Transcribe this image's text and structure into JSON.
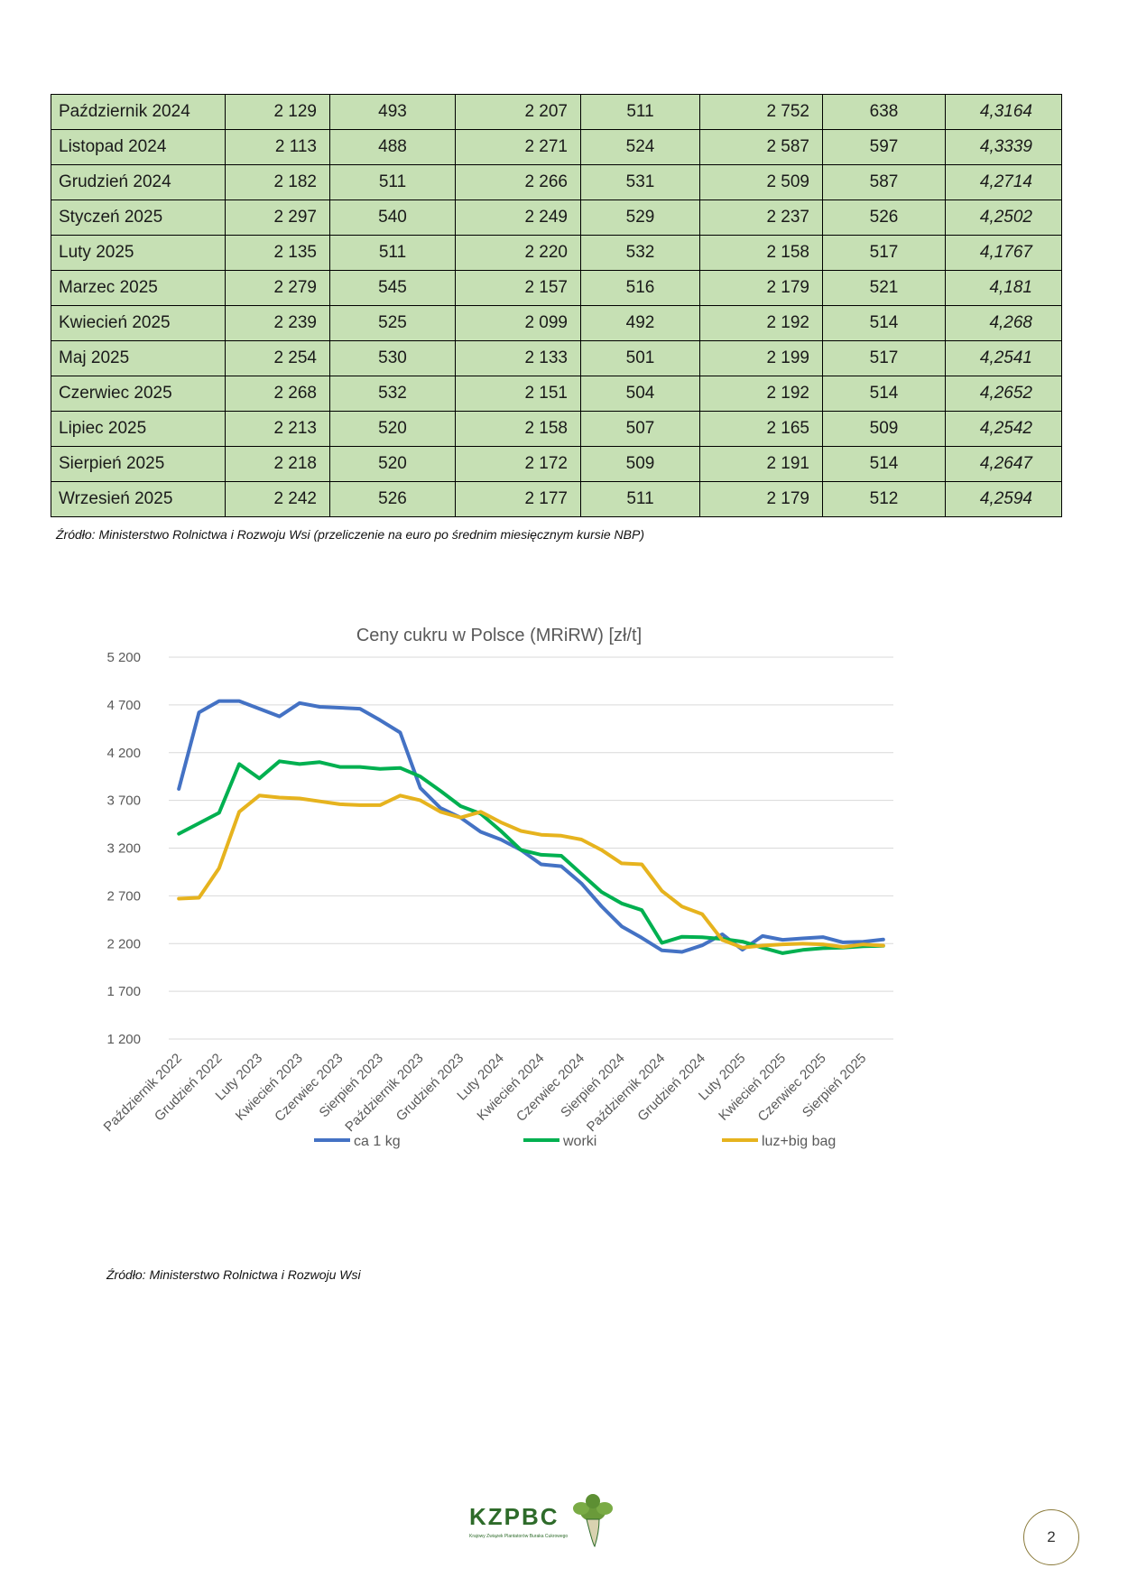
{
  "table": {
    "rows": [
      [
        "Październik 2024",
        "2 129",
        "493",
        "2 207",
        "511",
        "2 752",
        "638",
        "4,3164"
      ],
      [
        "Listopad 2024",
        "2 113",
        "488",
        "2 271",
        "524",
        "2 587",
        "597",
        "4,3339"
      ],
      [
        "Grudzień 2024",
        "2 182",
        "511",
        "2 266",
        "531",
        "2 509",
        "587",
        "4,2714"
      ],
      [
        "Styczeń 2025",
        "2 297",
        "540",
        "2 249",
        "529",
        "2 237",
        "526",
        "4,2502"
      ],
      [
        "Luty 2025",
        "2 135",
        "511",
        "2 220",
        "532",
        "2 158",
        "517",
        "4,1767"
      ],
      [
        "Marzec 2025",
        "2 279",
        "545",
        "2 157",
        "516",
        "2 179",
        "521",
        "4,181"
      ],
      [
        "Kwiecień 2025",
        "2 239",
        "525",
        "2 099",
        "492",
        "2 192",
        "514",
        "4,268"
      ],
      [
        "Maj 2025",
        "2 254",
        "530",
        "2 133",
        "501",
        "2 199",
        "517",
        "4,2541"
      ],
      [
        "Czerwiec 2025",
        "2 268",
        "532",
        "2 151",
        "504",
        "2 192",
        "514",
        "4,2652"
      ],
      [
        "Lipiec 2025",
        "2 213",
        "520",
        "2 158",
        "507",
        "2 165",
        "509",
        "4,2542"
      ],
      [
        "Sierpień 2025",
        "2 218",
        "520",
        "2 172",
        "509",
        "2 191",
        "514",
        "4,2647"
      ],
      [
        "Wrzesień 2025",
        "2 242",
        "526",
        "2 177",
        "511",
        "2 179",
        "512",
        "4,2594"
      ]
    ],
    "background_color": "#c6e0b4"
  },
  "table_source": "Źródło: Ministerstwo Rolnictwa i Rozwoju Wsi (przeliczenie na euro po średnim miesięcznym kursie NBP)",
  "chart_source": "Źródło: Ministerstwo Rolnictwa i Rozwoju Wsi",
  "chart_data": {
    "type": "line",
    "title": "Ceny cukru w Polsce (MRiRW) [zł/t]",
    "ylim": [
      1200,
      5200
    ],
    "yticks": [
      1200,
      1700,
      2200,
      2700,
      3200,
      3700,
      4200,
      4700,
      5200
    ],
    "ytick_labels": [
      "1 200",
      "1 700",
      "2 200",
      "2 700",
      "3 200",
      "3 700",
      "4 200",
      "4 700",
      "5 200"
    ],
    "grid": true,
    "legend_position": "bottom",
    "categories": [
      "Październik 2022",
      "Listopad 2022",
      "Grudzień 2022",
      "Styczeń 2023",
      "Luty 2023",
      "Marzec 2023",
      "Kwiecień 2023",
      "Maj 2023",
      "Czerwiec 2023",
      "Lipiec 2023",
      "Sierpień 2023",
      "Wrzesień 2023",
      "Październik 2023",
      "Listopad 2023",
      "Grudzień 2023",
      "Styczeń 2024",
      "Luty 2024",
      "Marzec 2024",
      "Kwiecień 2024",
      "Maj 2024",
      "Czerwiec 2024",
      "Lipiec 2024",
      "Sierpień 2024",
      "Wrzesień 2024",
      "Październik 2024",
      "Listopad 2024",
      "Grudzień 2024",
      "Styczeń 2025",
      "Luty 2025",
      "Marzec 2025",
      "Kwiecień 2025",
      "Maj 2025",
      "Czerwiec 2025",
      "Lipiec 2025",
      "Sierpień 2025",
      "Wrzesień 2025"
    ],
    "xtick_labels": [
      "Październik 2022",
      "",
      "Grudzień 2022",
      "",
      "Luty 2023",
      "",
      "Kwiecień 2023",
      "",
      "Czerwiec 2023",
      "",
      "Sierpień 2023",
      "",
      "Październik 2023",
      "",
      "Grudzień 2023",
      "",
      "Luty 2024",
      "",
      "Kwiecień 2024",
      "",
      "Czerwiec 2024",
      "",
      "Sierpień 2024",
      "",
      "Październik 2024",
      "",
      "Grudzień 2024",
      "",
      "Luty 2025",
      "",
      "Kwiecień 2025",
      "",
      "Czerwiec 2025",
      "",
      "Sierpień 2025",
      ""
    ],
    "series": [
      {
        "name": "ca 1 kg",
        "color": "#4472c4",
        "values": [
          3820,
          4620,
          4740,
          4740,
          4660,
          4580,
          4720,
          4680,
          4670,
          4660,
          4540,
          4410,
          3830,
          3620,
          3520,
          3370,
          3290,
          3180,
          3030,
          3010,
          2830,
          2590,
          2380,
          2260,
          2129,
          2113,
          2182,
          2297,
          2135,
          2279,
          2239,
          2254,
          2268,
          2213,
          2218,
          2242
        ]
      },
      {
        "name": "worki",
        "color": "#00b050",
        "values": [
          3350,
          3460,
          3570,
          4080,
          3930,
          4110,
          4080,
          4100,
          4050,
          4050,
          4030,
          4040,
          3950,
          3800,
          3640,
          3560,
          3380,
          3180,
          3130,
          3120,
          2930,
          2740,
          2620,
          2550,
          2207,
          2271,
          2266,
          2249,
          2220,
          2157,
          2099,
          2133,
          2151,
          2158,
          2172,
          2177
        ]
      },
      {
        "name": "luz+big bag",
        "color": "#e6b31e",
        "values": [
          2670,
          2680,
          2990,
          3580,
          3750,
          3730,
          3720,
          3690,
          3660,
          3650,
          3650,
          3750,
          3700,
          3580,
          3520,
          3580,
          3470,
          3380,
          3340,
          3330,
          3290,
          3180,
          3040,
          3030,
          2752,
          2587,
          2509,
          2237,
          2158,
          2179,
          2192,
          2199,
          2192,
          2165,
          2191,
          2179
        ]
      }
    ]
  },
  "logo": {
    "text": "KZPBC",
    "subtitle": "Krajowy Związek Plantatorów Buraka Cukrowego",
    "color": "#2e6b2a"
  },
  "page_number": "2"
}
